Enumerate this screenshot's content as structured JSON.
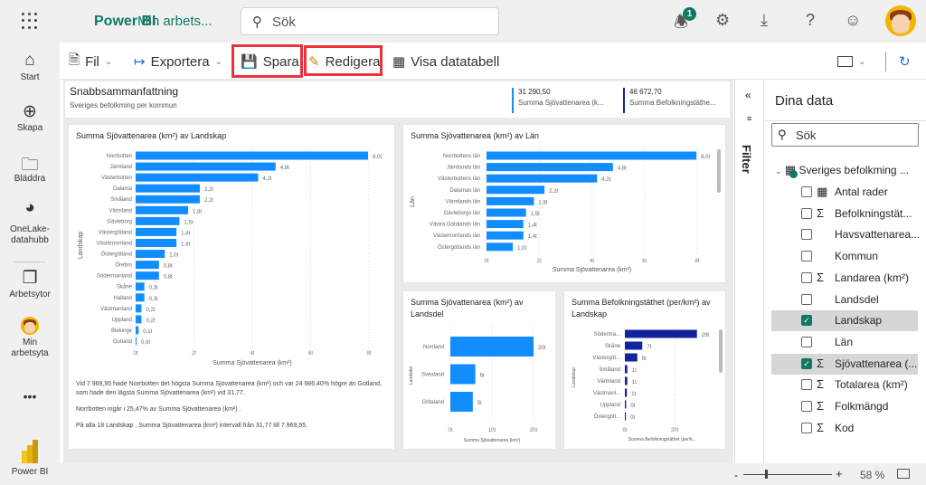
{
  "topbar": {
    "brand": "Power BI",
    "workspace": "Min arbets...",
    "search_placeholder": "Sök",
    "notification_count": "1"
  },
  "leftnav": [
    {
      "label": "Start",
      "icon": "home-icon"
    },
    {
      "label": "Skapa",
      "icon": "plus-circle-icon"
    },
    {
      "label": "Bläddra",
      "icon": "folder-icon"
    },
    {
      "label": "OneLake-datahubb",
      "icon": "onelake-icon"
    },
    {
      "label": "Arbetsytor",
      "icon": "workspaces-icon"
    },
    {
      "label": "Min arbetsyta",
      "icon": "avatar-icon"
    },
    {
      "label": "•••",
      "icon": "more-icon"
    },
    {
      "label": "Power BI",
      "icon": "powerbi-logo-icon"
    }
  ],
  "toolbar": {
    "file": "Fil",
    "export": "Exportera",
    "save": "Spara",
    "edit": "Redigera",
    "show_table": "Visa datatabell"
  },
  "summary": {
    "title": "Snabbsammanfattning",
    "subtitle": "Sveriges befolkming per kommun",
    "kpis": [
      {
        "value": "31 290,50",
        "label": "Summa Sjövattenarea (k...",
        "color": "#118dff"
      },
      {
        "value": "46 672,70",
        "label": "Summa Befolkningstäthe...",
        "color": "#12239e"
      }
    ]
  },
  "narrative": [
    "Vid 7 969,95 hade Norrbotten det högsta Summa  Sjövattenarea (km²)  och var 24 986,40% högre än Gotland, som hade den lägsta Summa  Sjövattenarea (km²)  vid 31,77.",
    "Norrbotten ingår i 25,47% av Summa  Sjövattenarea (km²) .",
    "På alla 18  Landskap , Summa  Sjövattenarea (km²)  intervall från 31,77 till 7 969,95."
  ],
  "chart_data": [
    {
      "type": "bar",
      "orientation": "horizontal",
      "title": "Summa Sjövattenarea (km²) av Landskap",
      "xlabel": "Summa Sjövattenarea (km²)",
      "ylabel": "Landskap",
      "color": "#118dff",
      "categories": [
        "Norrbotten",
        "Jämtland",
        "Västerbotten",
        "Dalarna",
        "Småland",
        "Värmland",
        "Gävleborg",
        "Västergötland",
        "Västernorrland",
        "Östergötland",
        "Örebro",
        "Södermanland",
        "Skåne",
        "Halland",
        "Västmanland",
        "Uppland",
        "Blekinge",
        "Gotland"
      ],
      "values": [
        7.97,
        4.8,
        4.2,
        2.2,
        2.2,
        1.8,
        1.5,
        1.4,
        1.4,
        1.0,
        0.8,
        0.8,
        0.3,
        0.3,
        0.2,
        0.2,
        0.1,
        0.03
      ],
      "value_labels": [
        "8,0t",
        "4,8t",
        "4,2t",
        "2,2t",
        "2,2t",
        "1,8t",
        "1,5t",
        "1,4t",
        "1,4t",
        "1,0t",
        "0,8t",
        "0,8t",
        "0,3t",
        "0,3t",
        "0,2t",
        "0,2t",
        "0,1t",
        "0,0t"
      ],
      "xticks": [
        "0t",
        "2t",
        "4t",
        "6t",
        "8t"
      ],
      "xlim": [
        0,
        8
      ],
      "grid": true
    },
    {
      "type": "bar",
      "orientation": "horizontal",
      "title": "Summa Sjövattenarea (km²) av Län",
      "xlabel": "Summa Sjövattenarea (km²)",
      "ylabel": "Län",
      "color": "#118dff",
      "categories": [
        "Norrbottens län",
        "Jämtlands län",
        "Västerbottens län",
        "Dalarnas län",
        "Värmlands län",
        "Gävleborgs län",
        "Västra Götalands län",
        "Västernorrlands län",
        "Östergötlands län"
      ],
      "values": [
        7.97,
        4.8,
        4.2,
        2.2,
        1.8,
        1.5,
        1.4,
        1.4,
        1.0
      ],
      "value_labels": [
        "8,0t",
        "4,8t",
        "4,2t",
        "2,2t",
        "1,8t",
        "1,5t",
        "1,4t",
        "1,4t",
        "1,0t"
      ],
      "xticks": [
        "0t",
        "2t",
        "4t",
        "6t",
        "8t"
      ],
      "xlim": [
        0,
        8
      ],
      "grid": true
    },
    {
      "type": "bar",
      "orientation": "horizontal",
      "title": "Summa Sjövattenarea (km²) av Landsdel",
      "xlabel": "Summa Sjövattenarea (km²)",
      "ylabel": "Landsdel",
      "color": "#118dff",
      "categories": [
        "Norrland",
        "Svealand",
        "Götaland"
      ],
      "values": [
        20,
        6,
        5.4
      ],
      "value_labels": [
        "20t",
        "6t",
        "5t"
      ],
      "xticks": [
        "0t",
        "10t",
        "20t"
      ],
      "xlim": [
        0,
        20
      ],
      "grid": true
    },
    {
      "type": "bar",
      "orientation": "horizontal",
      "title": "Summa Befolkningstäthet (per/km²) av Landskap",
      "xlabel": "Summa Befolkningstäthet (per/k...",
      "ylabel": "Landskap",
      "color": "#12239e",
      "categories": [
        "Söderma...",
        "Skåne",
        "Västergöt...",
        "Småland",
        "Värmland",
        "Västmanl...",
        "Uppland",
        "Östergötl..."
      ],
      "values": [
        29,
        7,
        5,
        1,
        1,
        0.8,
        0.5,
        0.4
      ],
      "value_labels": [
        "29t",
        "7t",
        "5t",
        "1t",
        "1t",
        "1t",
        "0t",
        "0t"
      ],
      "xticks": [
        "0t",
        "20t"
      ],
      "xlim": [
        0,
        30
      ],
      "grid": true
    }
  ],
  "filter": {
    "label": "Filter"
  },
  "datapane": {
    "title": "Dina data",
    "search_placeholder": "Sök",
    "table": "Sveriges befolkming ...",
    "fields": [
      {
        "label": "Antal rader",
        "icon": "calculator-icon",
        "checked": false
      },
      {
        "label": "Befolkningstät...",
        "icon": "sigma-icon",
        "checked": false
      },
      {
        "label": "Havsvattenarea...",
        "icon": "",
        "checked": false
      },
      {
        "label": "Kommun",
        "icon": "",
        "checked": false
      },
      {
        "label": "Landarea (km²)",
        "icon": "sigma-icon",
        "checked": false
      },
      {
        "label": "Landsdel",
        "icon": "",
        "checked": false
      },
      {
        "label": "Landskap",
        "icon": "",
        "checked": true
      },
      {
        "label": "Län",
        "icon": "",
        "checked": false
      },
      {
        "label": "Sjövattenarea (...",
        "icon": "sigma-icon",
        "checked": true
      },
      {
        "label": "Totalarea (km²)",
        "icon": "sigma-icon",
        "checked": false
      },
      {
        "label": "Folkmängd",
        "icon": "sigma-icon",
        "checked": false
      },
      {
        "label": "Kod",
        "icon": "sigma-icon",
        "checked": false
      }
    ]
  },
  "status": {
    "zoom": "58 %",
    "zoom_level": 58
  }
}
